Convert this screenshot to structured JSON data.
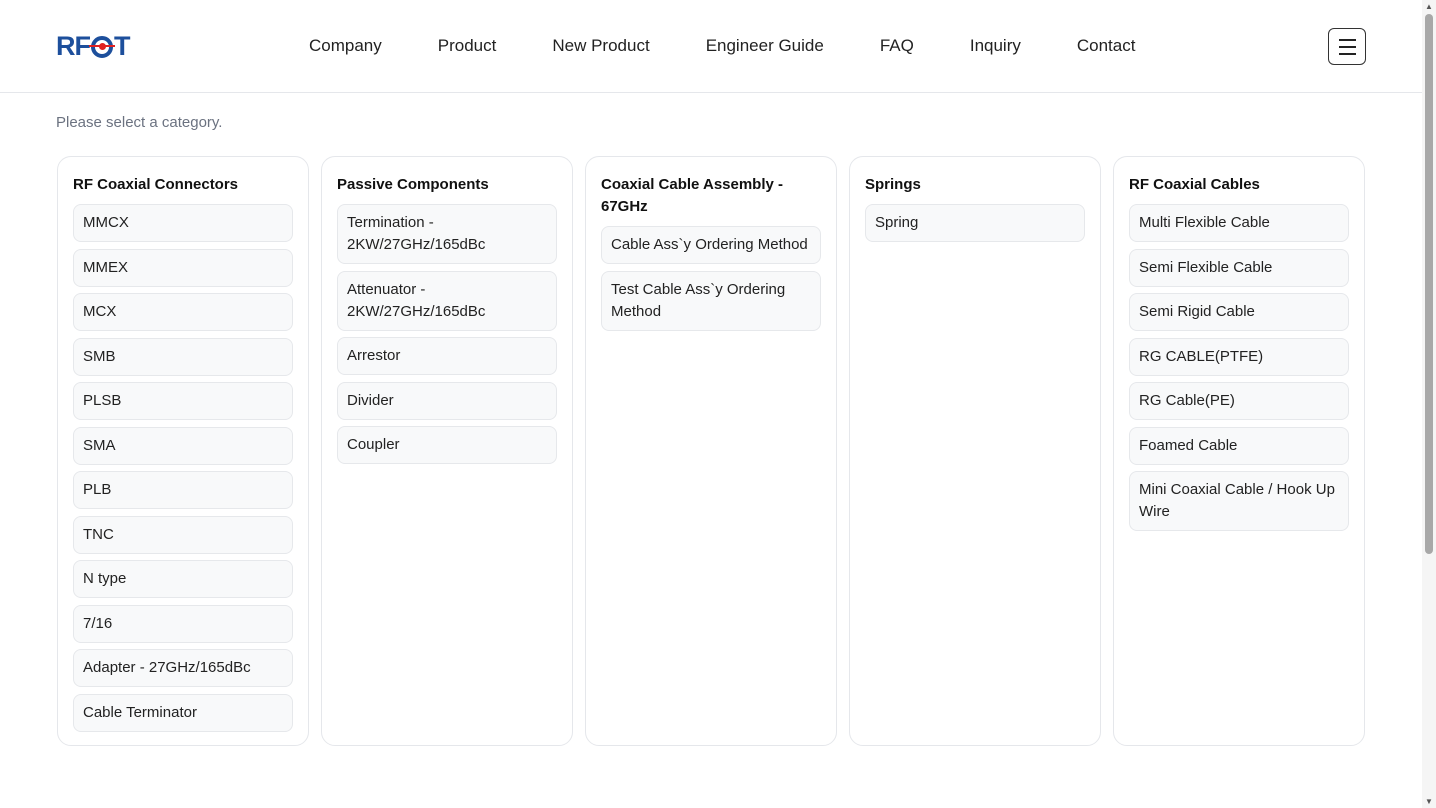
{
  "header": {
    "logo": "RFCT",
    "nav": [
      "Company",
      "Product",
      "New Product",
      "Engineer Guide",
      "FAQ",
      "Inquiry",
      "Contact"
    ],
    "menu_icon": "hamburger-icon"
  },
  "hint": "Please select a category.",
  "categories": [
    {
      "title": "RF Coaxial Connectors",
      "items": [
        "MMCX",
        "MMEX",
        "MCX",
        "SMB",
        "PLSB",
        "SMA",
        "PLB",
        "TNC",
        "N type",
        "7/16",
        "Adapter - 27GHz/165dBc",
        "Cable Terminator"
      ]
    },
    {
      "title": "Passive Components",
      "items": [
        "Termination - 2KW/27GHz/165dBc",
        "Attenuator - 2KW/27GHz/165dBc",
        "Arrestor",
        "Divider",
        "Coupler"
      ]
    },
    {
      "title": "Coaxial Cable Assembly - 67GHz",
      "items": [
        "Cable Ass`y Ordering Method",
        "Test Cable Ass`y Ordering Method"
      ]
    },
    {
      "title": "Springs",
      "items": [
        "Spring"
      ]
    },
    {
      "title": "RF Coaxial Cables",
      "items": [
        "Multi Flexible Cable",
        "Semi Flexible Cable",
        "Semi Rigid Cable",
        "RG CABLE(PTFE)",
        "RG Cable(PE)",
        "Foamed Cable",
        "Mini Coaxial Cable / Hook Up Wire"
      ]
    }
  ]
}
